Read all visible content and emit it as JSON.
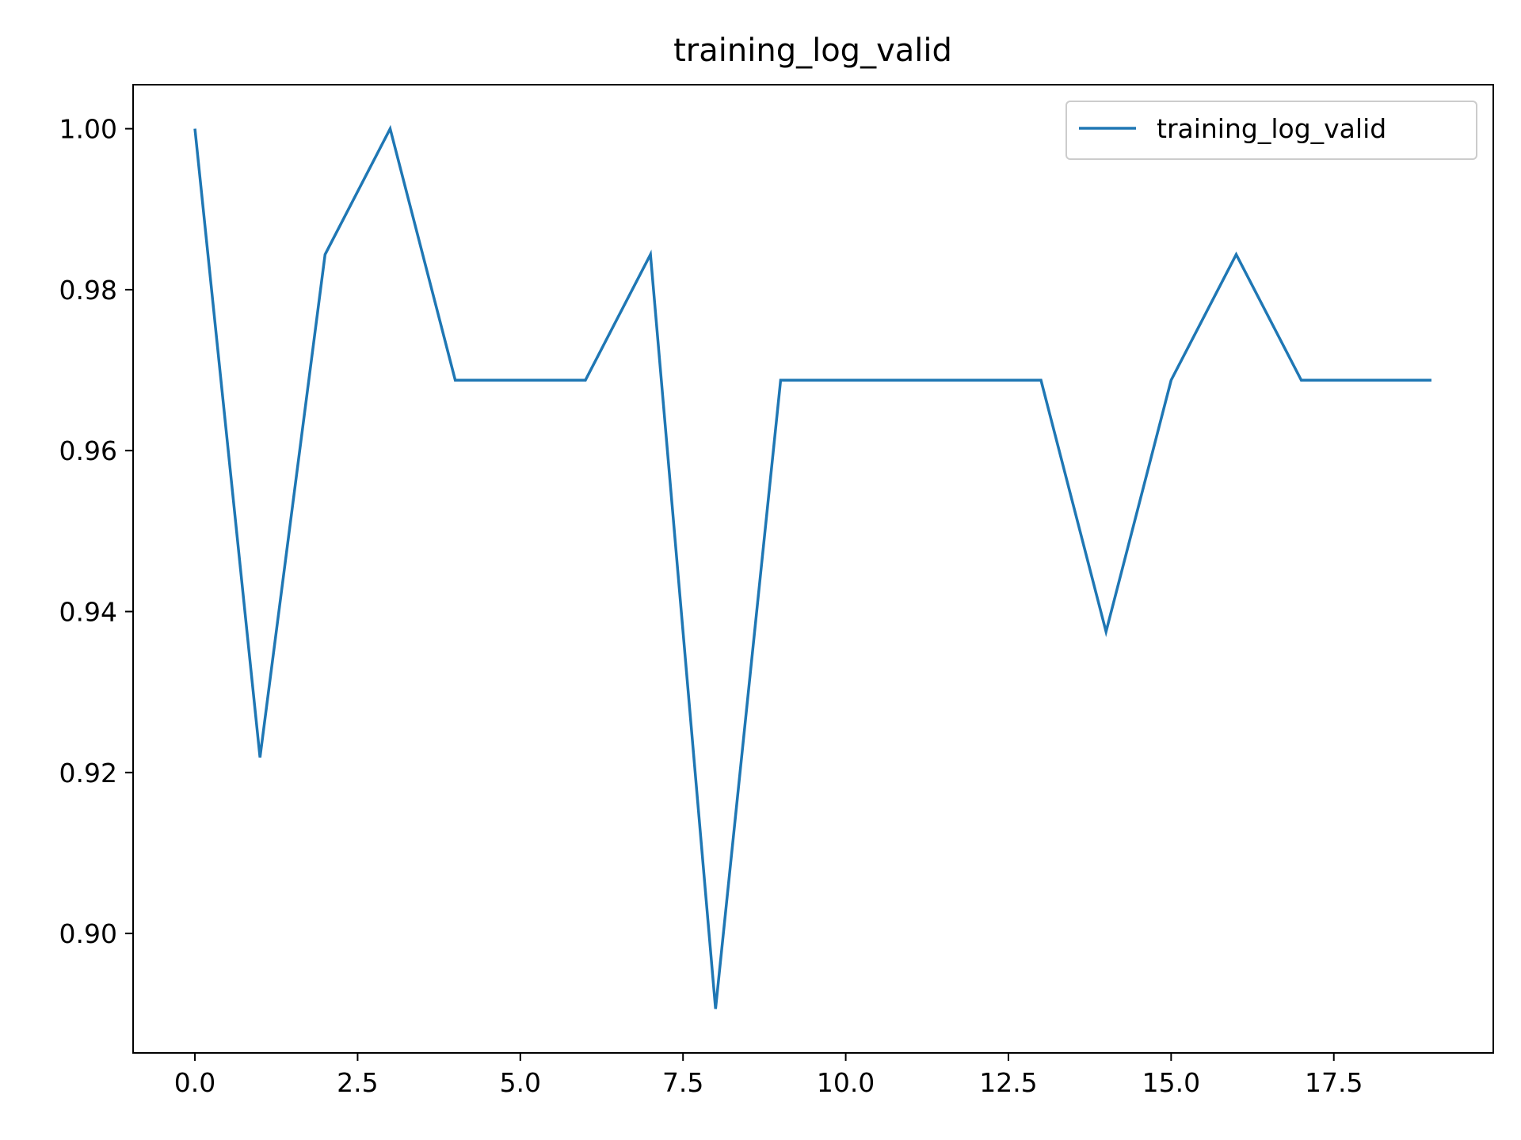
{
  "chart_data": {
    "type": "line",
    "title": "training_log_valid",
    "xlabel": "",
    "ylabel": "",
    "x": [
      0,
      1,
      2,
      3,
      4,
      5,
      6,
      7,
      8,
      9,
      10,
      11,
      12,
      13,
      14,
      15,
      16,
      17,
      18,
      19
    ],
    "series": [
      {
        "name": "training_log_valid",
        "color": "#1f77b4",
        "values": [
          1.0,
          0.921875,
          0.984375,
          1.0,
          0.96875,
          0.96875,
          0.96875,
          0.984375,
          0.890625,
          0.96875,
          0.96875,
          0.96875,
          0.96875,
          0.96875,
          0.9375,
          0.96875,
          0.984375,
          0.96875,
          0.96875,
          0.96875
        ]
      }
    ],
    "xlim": [
      -0.95,
      19.95
    ],
    "ylim": [
      0.885156,
      1.005469
    ],
    "xticks": [
      0.0,
      2.5,
      5.0,
      7.5,
      10.0,
      12.5,
      15.0,
      17.5
    ],
    "xtick_labels": [
      "0.0",
      "2.5",
      "5.0",
      "7.5",
      "10.0",
      "12.5",
      "15.0",
      "17.5"
    ],
    "yticks": [
      0.9,
      0.92,
      0.94,
      0.96,
      0.98,
      1.0
    ],
    "ytick_labels": [
      "0.90",
      "0.92",
      "0.94",
      "0.96",
      "0.98",
      "1.00"
    ],
    "grid": false,
    "legend_position": "top-right"
  }
}
